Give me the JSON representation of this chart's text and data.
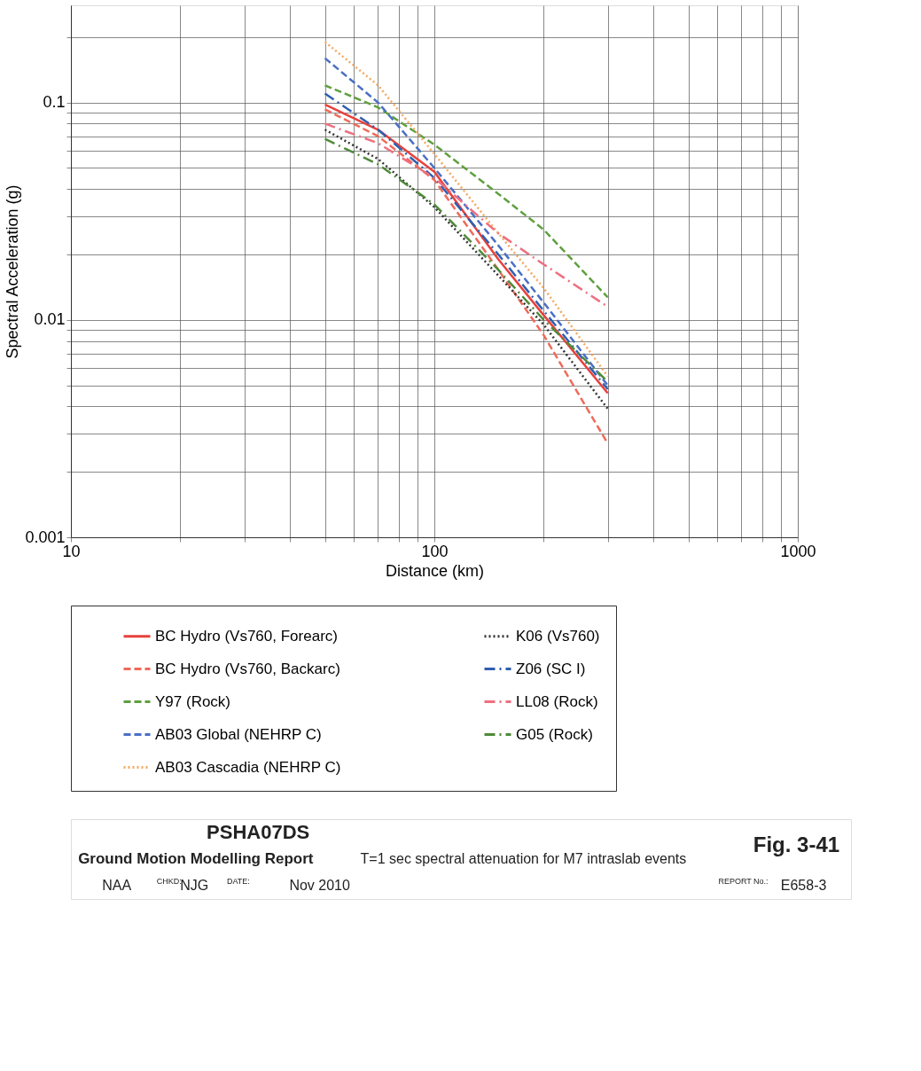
{
  "chart_data": {
    "type": "line",
    "xlabel": "Distance (km)",
    "ylabel": "Spectral Acceleration (g)",
    "log": "xy",
    "grid": true,
    "legend": "bottom",
    "marker": "none",
    "xlim": [
      10,
      1000
    ],
    "ylim": [
      0.001,
      0.28
    ],
    "xticks": [
      10,
      {
        "value": 20,
        "label": null
      },
      {
        "value": 30,
        "label": null
      },
      {
        "value": 40,
        "label": null
      },
      {
        "value": 50,
        "label": null
      },
      {
        "value": 60,
        "label": null
      },
      {
        "value": 70,
        "label": null
      },
      {
        "value": 80,
        "label": null
      },
      {
        "value": 90,
        "label": null
      },
      100,
      {
        "value": 200,
        "label": null
      },
      {
        "value": 300,
        "label": null
      },
      {
        "value": 400,
        "label": null
      },
      {
        "value": 500,
        "label": null
      },
      {
        "value": 600,
        "label": null
      },
      {
        "value": 700,
        "label": null
      },
      {
        "value": 800,
        "label": null
      },
      {
        "value": 900,
        "label": null
      },
      1000
    ],
    "yticks": [
      0.001,
      {
        "value": 0.002,
        "label": null
      },
      {
        "value": 0.003,
        "label": null
      },
      {
        "value": 0.004,
        "label": null
      },
      {
        "value": 0.005,
        "label": null
      },
      {
        "value": 0.006,
        "label": null
      },
      {
        "value": 0.007,
        "label": null
      },
      {
        "value": 0.008,
        "label": null
      },
      {
        "value": 0.009,
        "label": null
      },
      0.01,
      {
        "value": 0.02,
        "label": null
      },
      {
        "value": 0.03,
        "label": null
      },
      {
        "value": 0.04,
        "label": null
      },
      {
        "value": 0.05,
        "label": null
      },
      {
        "value": 0.06,
        "label": null
      },
      {
        "value": 0.07,
        "label": null
      },
      {
        "value": 0.08,
        "label": null
      },
      {
        "value": 0.09,
        "label": null
      },
      0.1,
      {
        "value": 0.2,
        "label": null
      }
    ],
    "x": [
      50,
      70,
      100,
      150,
      200,
      300
    ],
    "series": [
      {
        "name": "BC Hydro (Vs760, Forearc)",
        "color": "#e8413c",
        "line_style": "solid",
        "values": [
          0.098,
          0.075,
          0.048,
          0.019,
          0.0105,
          0.0046
        ]
      },
      {
        "name": "BC Hydro (Vs760, Backarc)",
        "color": "#ef6a5a",
        "line_style": "dashed",
        "values": [
          0.093,
          0.07,
          0.044,
          0.017,
          0.0085,
          0.0027
        ]
      },
      {
        "name": "Y97 (Rock)",
        "color": "#5fa040",
        "line_style": "dashed",
        "values": [
          0.12,
          0.095,
          0.064,
          0.038,
          0.026,
          0.0127
        ]
      },
      {
        "name": "AB03 Global (NEHRP C)",
        "color": "#4a6fc4",
        "line_style": "dashed",
        "values": [
          0.16,
          0.1,
          0.05,
          0.022,
          0.012,
          0.005
        ]
      },
      {
        "name": "AB03 Cascadia (NEHRP C)",
        "color": "#f5a860",
        "line_style": "dotted",
        "values": [
          0.19,
          0.12,
          0.058,
          0.025,
          0.014,
          0.0055
        ]
      },
      {
        "name": "K06 (Vs760)",
        "color": "#333333",
        "line_style": "dotted",
        "values": [
          0.075,
          0.055,
          0.033,
          0.016,
          0.0095,
          0.0039
        ]
      },
      {
        "name": "Z06 (SC I)",
        "color": "#2f5fb0",
        "line_style": "dashdot",
        "values": [
          0.11,
          0.075,
          0.045,
          0.02,
          0.011,
          0.0048
        ]
      },
      {
        "name": "LL08 (Rock)",
        "color": "#ee6f7f",
        "line_style": "dashdot",
        "values": [
          0.08,
          0.065,
          0.045,
          0.025,
          0.018,
          0.0115
        ]
      },
      {
        "name": "G05 (Rock)",
        "color": "#4f8a3a",
        "line_style": "dashdot",
        "values": [
          0.068,
          0.052,
          0.034,
          0.017,
          0.01,
          0.0052
        ]
      }
    ],
    "annotations": [
      "PSHA07DS",
      "Ground Motion Modelling Report",
      "NAA",
      "CHKD:",
      "NJG",
      "DATE:",
      "Nov 2010",
      "T=1 sec spectral attenuation for M7 intraslab events",
      "Fig. 3-41",
      "REPORT No.:",
      "E658-3"
    ]
  }
}
